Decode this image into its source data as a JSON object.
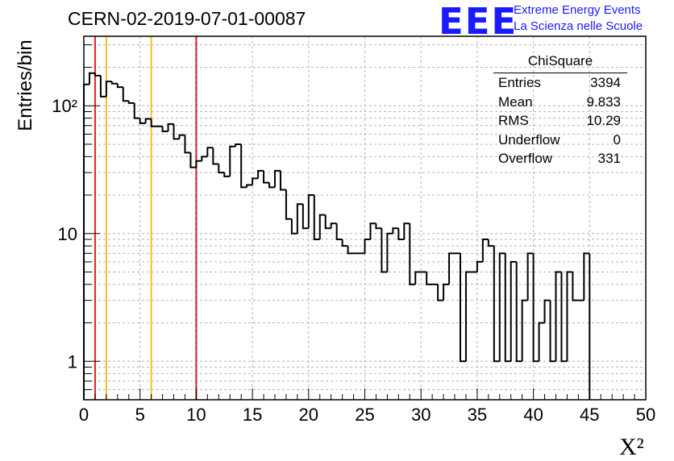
{
  "title": "CERN-02-2019-07-01-00087",
  "logo": {
    "text": "EEE",
    "line1": "Extreme Energy Events",
    "line2": "La Scienza nelle Scuole"
  },
  "stats": {
    "name": "ChiSquare",
    "rows": [
      {
        "label": "Entries",
        "value": "3394"
      },
      {
        "label": "Mean",
        "value": "9.833"
      },
      {
        "label": "RMS",
        "value": "10.29"
      },
      {
        "label": "Underflow",
        "value": "0"
      },
      {
        "label": "Overflow",
        "value": "331"
      }
    ]
  },
  "chart_data": {
    "type": "histogram",
    "title": "CERN-02-2019-07-01-00087",
    "xlabel": "X²",
    "ylabel": "Entries/bin",
    "xlim": [
      0,
      50
    ],
    "ylim": [
      0.5,
      350
    ],
    "yscale": "log",
    "grid": true,
    "bin_width": 0.5,
    "x_ticks": [
      "0",
      "5",
      "10",
      "15",
      "20",
      "25",
      "30",
      "35",
      "40",
      "45",
      "50"
    ],
    "y_ticks": [
      {
        "value": 1,
        "label": "1"
      },
      {
        "value": 10,
        "label": "10"
      },
      {
        "value": 100,
        "label": "10²"
      }
    ],
    "values": [
      147,
      180,
      172,
      118,
      155,
      149,
      140,
      109,
      105,
      80,
      73,
      79,
      69,
      69,
      63,
      72,
      55,
      59,
      43,
      33,
      37,
      40,
      47,
      35,
      30,
      28,
      48,
      50,
      23,
      24,
      27,
      31,
      25,
      23,
      31,
      22,
      13,
      10,
      17,
      11,
      20,
      9,
      14,
      11,
      12,
      9,
      8,
      7,
      7,
      7,
      9,
      12,
      11,
      5,
      10,
      11,
      9,
      12,
      4,
      5,
      5,
      4,
      4,
      3,
      4,
      7,
      7,
      1,
      5,
      5,
      6,
      9,
      8,
      1,
      7,
      1,
      6,
      1,
      3,
      7,
      1,
      2,
      3,
      1,
      5,
      1,
      5,
      3,
      3,
      7
    ],
    "vlines": [
      {
        "x": 1,
        "color": "#e8202a",
        "style": "solid"
      },
      {
        "x": 2,
        "color": "#f0c020",
        "style": "solid"
      },
      {
        "x": 6,
        "color": "#f0c020",
        "style": "solid"
      },
      {
        "x": 10,
        "color": "#000000",
        "style": "dashed"
      },
      {
        "x": 10,
        "color": "#e8202a",
        "style": "solid"
      }
    ]
  }
}
